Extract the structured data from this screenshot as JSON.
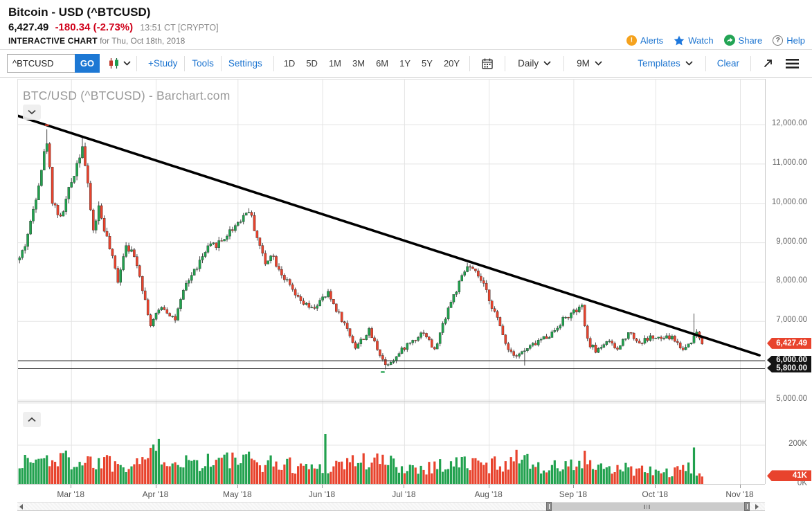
{
  "header": {
    "title": "Bitcoin - USD (^BTCUSD)",
    "last_price": "6,427.49",
    "change": "-180.34 (-2.73%)",
    "quote_meta": "13:51 CT [CRYPTO]",
    "page_label": "INTERACTIVE CHART",
    "page_label_suffix": "for Thu, Oct 18th, 2018",
    "links": [
      {
        "id": "alerts",
        "label": "Alerts"
      },
      {
        "id": "watch",
        "label": "Watch"
      },
      {
        "id": "share",
        "label": "Share"
      },
      {
        "id": "help",
        "label": "Help"
      }
    ]
  },
  "toolbar": {
    "symbol_value": "^BTCUSD",
    "go_label": "GO",
    "links": [
      "+Study",
      "Tools",
      "Settings"
    ],
    "ranges": [
      "1D",
      "5D",
      "1M",
      "3M",
      "6M",
      "1Y",
      "5Y",
      "20Y"
    ],
    "frequency": "Daily",
    "span": "9M",
    "templates_label": "Templates",
    "clear_label": "Clear"
  },
  "chart_data": {
    "type": "candlestick",
    "title_watermark": "BTC/USD (^BTCUSD) - Barchart.com",
    "frequency": "daily",
    "date_range": {
      "start": "2018-02-10",
      "end": "2018-10-18"
    },
    "last_close": 6427.49,
    "y_axis": {
      "ticks": [
        {
          "v": 12000,
          "label": "12,000.00"
        },
        {
          "v": 11000,
          "label": "11,000.00"
        },
        {
          "v": 10000,
          "label": "10,000.00"
        },
        {
          "v": 9000,
          "label": "9,000.00"
        },
        {
          "v": 8000,
          "label": "8,000.00"
        },
        {
          "v": 7000,
          "label": "7,000.00"
        },
        {
          "v": 5000,
          "label": "5,000.00"
        }
      ]
    },
    "volume_axis": {
      "ticks": [
        {
          "v": 200,
          "label": "200K"
        },
        {
          "v": 0,
          "label": "0K"
        }
      ]
    },
    "badges": {
      "last_price": {
        "label": "6,427.49",
        "value": 6427.49,
        "color": "#e8432d"
      },
      "support_upper": {
        "label": "6,000.00",
        "value": 6000,
        "color": "#141414"
      },
      "support_lower": {
        "label": "5,800.00",
        "value": 5800,
        "color": "#141414"
      },
      "last_volume": {
        "label": "41K",
        "value": 41,
        "color": "#e8432d"
      }
    },
    "x_axis": {
      "months": [
        {
          "date": "2018-03-01",
          "label": "Mar '18"
        },
        {
          "date": "2018-04-01",
          "label": "Apr '18"
        },
        {
          "date": "2018-05-01",
          "label": "May '18"
        },
        {
          "date": "2018-06-01",
          "label": "Jun '18"
        },
        {
          "date": "2018-07-01",
          "label": "Jul '18"
        },
        {
          "date": "2018-08-01",
          "label": "Aug '18"
        },
        {
          "date": "2018-09-01",
          "label": "Sep '18"
        },
        {
          "date": "2018-10-01",
          "label": "Oct '18"
        },
        {
          "date": "2018-11-01",
          "label": "Nov '18"
        }
      ]
    },
    "support_lines": [
      6000,
      5800
    ],
    "trendline": {
      "start": {
        "date": "2018-02-09",
        "price": 12230
      },
      "end": {
        "date": "2018-11-08",
        "price": 6140
      }
    },
    "markers": [
      {
        "date": "2018-02-20",
        "price": 11990,
        "color": "#e8432d"
      },
      {
        "date": "2018-06-23",
        "price": 5715,
        "color": "#21a14e"
      }
    ],
    "price_path": [
      [
        "2018-02-10",
        8600
      ],
      [
        "2018-02-12",
        8950
      ],
      [
        "2018-02-14",
        9500
      ],
      [
        "2018-02-17",
        10550
      ],
      [
        "2018-02-20",
        11600
      ],
      [
        "2018-02-22",
        10100
      ],
      [
        "2018-02-25",
        9600
      ],
      [
        "2018-03-05",
        11500
      ],
      [
        "2018-03-09",
        9300
      ],
      [
        "2018-03-11",
        9900
      ],
      [
        "2018-03-18",
        8050
      ],
      [
        "2018-03-21",
        9000
      ],
      [
        "2018-03-25",
        8500
      ],
      [
        "2018-03-30",
        6900
      ],
      [
        "2018-04-03",
        7400
      ],
      [
        "2018-04-08",
        7050
      ],
      [
        "2018-04-12",
        7950
      ],
      [
        "2018-04-20",
        8850
      ],
      [
        "2018-04-25",
        9050
      ],
      [
        "2018-05-05",
        9850
      ],
      [
        "2018-05-11",
        8450
      ],
      [
        "2018-05-13",
        8750
      ],
      [
        "2018-05-18",
        8100
      ],
      [
        "2018-05-23",
        7550
      ],
      [
        "2018-05-28",
        7300
      ],
      [
        "2018-06-03",
        7700
      ],
      [
        "2018-06-10",
        6800
      ],
      [
        "2018-06-13",
        6350
      ],
      [
        "2018-06-18",
        6750
      ],
      [
        "2018-06-24",
        5900
      ],
      [
        "2018-06-28",
        6100
      ],
      [
        "2018-07-01",
        6350
      ],
      [
        "2018-07-08",
        6750
      ],
      [
        "2018-07-12",
        6250
      ],
      [
        "2018-07-17",
        7350
      ],
      [
        "2018-07-24",
        8400
      ],
      [
        "2018-07-28",
        8150
      ],
      [
        "2018-07-31",
        7750
      ],
      [
        "2018-08-04",
        7050
      ],
      [
        "2018-08-08",
        6300
      ],
      [
        "2018-08-11",
        6150
      ],
      [
        "2018-08-14",
        6250
      ],
      [
        "2018-08-19",
        6500
      ],
      [
        "2018-08-24",
        6700
      ],
      [
        "2018-08-28",
        7050
      ],
      [
        "2018-09-04",
        7350
      ],
      [
        "2018-09-06",
        6500
      ],
      [
        "2018-09-09",
        6250
      ],
      [
        "2018-09-13",
        6500
      ],
      [
        "2018-09-17",
        6280
      ],
      [
        "2018-09-21",
        6750
      ],
      [
        "2018-09-25",
        6450
      ],
      [
        "2018-09-29",
        6600
      ],
      [
        "2018-10-02",
        6550
      ],
      [
        "2018-10-07",
        6600
      ],
      [
        "2018-10-11",
        6280
      ],
      [
        "2018-10-15",
        6600
      ],
      [
        "2018-10-16",
        6750
      ],
      [
        "2018-10-18",
        6427.49
      ]
    ],
    "wick_events": [
      {
        "date": "2018-02-20",
        "high": 11880
      },
      {
        "date": "2018-03-05",
        "high": 11660
      },
      {
        "date": "2018-06-24",
        "low": 5780
      },
      {
        "date": "2018-07-24",
        "high": 8490
      },
      {
        "date": "2018-08-14",
        "low": 5880
      },
      {
        "date": "2018-09-04",
        "high": 7410
      },
      {
        "date": "2018-10-15",
        "high": 7200
      }
    ],
    "volume_profile": [
      [
        "2018-02-10",
        115
      ],
      [
        "2018-02-20",
        130
      ],
      [
        "2018-03-05",
        120
      ],
      [
        "2018-03-20",
        110
      ],
      [
        "2018-04-02",
        150
      ],
      [
        "2018-04-15",
        115
      ],
      [
        "2018-04-25",
        125
      ],
      [
        "2018-05-08",
        115
      ],
      [
        "2018-05-20",
        100
      ],
      [
        "2018-05-29",
        85
      ],
      [
        "2018-06-05",
        100
      ],
      [
        "2018-06-12",
        120
      ],
      [
        "2018-06-24",
        115
      ],
      [
        "2018-07-02",
        85
      ],
      [
        "2018-07-10",
        90
      ],
      [
        "2018-07-17",
        105
      ],
      [
        "2018-07-25",
        110
      ],
      [
        "2018-08-01",
        95
      ],
      [
        "2018-08-08",
        125
      ],
      [
        "2018-08-14",
        120
      ],
      [
        "2018-08-22",
        85
      ],
      [
        "2018-08-28",
        90
      ],
      [
        "2018-09-05",
        105
      ],
      [
        "2018-09-12",
        70
      ],
      [
        "2018-09-21",
        80
      ],
      [
        "2018-10-01",
        62
      ],
      [
        "2018-10-09",
        65
      ],
      [
        "2018-10-15",
        85
      ],
      [
        "2018-10-18",
        45
      ]
    ],
    "volume_spikes": {
      "2018-02-26": 160,
      "2018-03-14": 150,
      "2018-04-02": 232,
      "2018-05-03": 152,
      "2018-06-02": 256,
      "2018-08-14": 150,
      "2018-09-05": 172,
      "2018-10-15": 188,
      "2018-10-18": 41
    },
    "colors": {
      "up": "#21a14e",
      "down": "#e8432d",
      "wick": "#333333",
      "trend": "#000000",
      "grid": "#e4e4e4",
      "support": "#333333"
    }
  }
}
